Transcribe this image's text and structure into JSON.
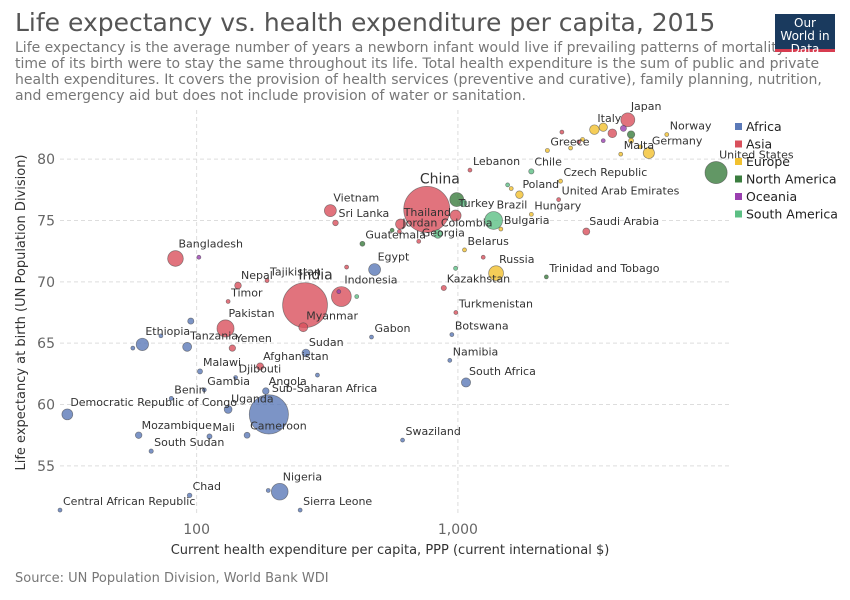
{
  "chart_data": {
    "type": "scatter",
    "title": "Life expectancy vs. health expenditure per capita, 2015",
    "subtitle": "Life expectancy is the average number of years a newborn infant would live if prevailing patterns of mortality at the time of its birth were to stay the same throughout its life. Total health expenditure is the sum of public and private health expenditures. It covers the provision of health services (preventive and curative), family planning, nutrition, and emergency aid but does not include provision of water or sanitation.",
    "logo": "Our World in Data",
    "x_label": "Current health expenditure per capita, PPP (current international $)",
    "y_label": "Life expectancy at birth (UN Population Division)",
    "source": "Source: UN Population Division, World Bank WDI",
    "log_x": true,
    "grid": true,
    "legend": "right",
    "xlim": [
      30,
      11000
    ],
    "ylim": [
      51,
      84
    ],
    "xticks": [
      100,
      {
        "value": 1000,
        "label": "1,000"
      }
    ],
    "yticks": [
      55,
      60,
      65,
      70,
      75,
      80
    ],
    "series": [
      {
        "name": "Africa",
        "color": "#5b79b8",
        "labels": [
          "Central African Republic",
          "Chad",
          "Nigeria",
          "Sierra Leone",
          "South Sudan",
          "Mozambique",
          "Mali",
          "Cameroon",
          "Swaziland",
          "Democratic Republic of Congo",
          "Uganda",
          "Sub-Saharan Africa",
          "Benin",
          "Gambia",
          "Angola",
          "Malawi",
          "Djibouti",
          "Sudan",
          "Tanzania",
          "Ethiopia",
          "Gabon",
          "Botswana",
          "Namibia",
          "South Africa",
          "Egypt",
          null,
          null,
          null,
          null,
          null
        ],
        "x": [
          30,
          94,
          208,
          249,
          67,
          60,
          112,
          156,
          614,
          32,
          132,
          189,
          80,
          107,
          184,
          103,
          141,
          262,
          92,
          62,
          467,
          948,
          931,
          1074,
          480,
          57,
          95,
          73,
          290,
          188
        ],
        "values": [
          51.4,
          52.6,
          52.9,
          51.4,
          56.2,
          57.5,
          57.4,
          57.5,
          57.1,
          59.2,
          59.6,
          59.2,
          60.5,
          61.2,
          61.1,
          62.7,
          62.2,
          64.2,
          64.7,
          64.9,
          65.5,
          65.7,
          63.6,
          61.8,
          71.0,
          64.6,
          66.8,
          65.6,
          62.4,
          53.0
        ],
        "sizes": [
          5,
          14,
          182,
          7,
          12,
          28,
          17,
          23,
          1,
          77,
          40,
          1000,
          11,
          2,
          28,
          17,
          1,
          40,
          53,
          100,
          2,
          2,
          2,
          55,
          93,
          10,
          25,
          8,
          10,
          4
        ]
      },
      {
        "name": "Asia",
        "color": "#d9505c",
        "labels": [
          "Japan",
          "Lebanon",
          "China",
          "India",
          "Vietnam",
          "Sri Lanka",
          "Bangladesh",
          "Nepal",
          "Tajikistan",
          "Timor",
          "Pakistan",
          "Yemen",
          "Afghanistan",
          "Myanmar",
          "Indonesia",
          "Kazakhstan",
          "Turkmenistan",
          "Thailand",
          "Turkey",
          "Jordan",
          "Georgia",
          "Saudi Arabia",
          "United Arab Emirates",
          null,
          null,
          null,
          null,
          null
        ],
        "x": [
          4470,
          1112,
          760,
          260,
          325,
          340,
          83,
          144,
          186,
          132,
          129,
          137,
          175,
          256,
          358,
          883,
          982,
          604,
          980,
          597,
          708,
          3100,
          2430,
          2500,
          3900,
          2900,
          1250,
          375
        ],
        "values": [
          83.2,
          79.1,
          75.9,
          68.1,
          75.8,
          74.8,
          71.9,
          69.7,
          70.1,
          68.4,
          66.2,
          64.6,
          63.1,
          66.3,
          68.8,
          69.5,
          67.5,
          74.7,
          75.4,
          74.1,
          73.3,
          74.1,
          76.7,
          82.2,
          82.1,
          81.4,
          72.0,
          71.2
        ],
        "sizes": [
          127,
          6,
          1380,
          1310,
          93,
          21,
          160,
          29,
          9,
          1,
          190,
          27,
          34,
          53,
          258,
          18,
          5,
          69,
          79,
          9,
          4,
          32,
          9,
          8,
          50,
          8,
          5,
          6
        ]
      },
      {
        "name": "Europe",
        "color": "#f2c12e",
        "labels": [
          "Italy",
          "Norway",
          "Germany",
          "Malta",
          "Greece",
          "Czech Republic",
          "Poland",
          "Hungary",
          "Bulgaria",
          "Belarus",
          "Russia",
          null,
          null,
          null,
          null,
          null,
          null
        ],
        "x": [
          3330,
          6300,
          5380,
          4200,
          2200,
          2470,
          1720,
          1910,
          1460,
          1060,
          1400,
          3600,
          4600,
          5000,
          3000,
          2700,
          1600
        ],
        "values": [
          82.4,
          82.0,
          80.5,
          80.4,
          80.7,
          78.2,
          77.1,
          75.5,
          74.3,
          72.6,
          70.7,
          82.6,
          81.5,
          81.0,
          81.6,
          80.9,
          77.6
        ],
        "sizes": [
          60,
          5,
          82,
          1,
          11,
          11,
          38,
          10,
          7,
          9,
          144,
          46,
          17,
          9,
          10,
          5,
          4
        ]
      },
      {
        "name": "North America",
        "color": "#3b7d3f",
        "labels": [
          "United States",
          "Guatemala",
          "Trinidad and Tobago",
          null,
          null,
          null
        ],
        "x": [
          9730,
          431,
          2180,
          990,
          4600,
          560
        ],
        "values": [
          78.9,
          73.1,
          70.4,
          76.7,
          82.0,
          74.2
        ],
        "sizes": [
          320,
          16,
          1,
          127,
          36,
          4
        ]
      },
      {
        "name": "Oceania",
        "color": "#9a3fb0",
        "labels": [
          null,
          null,
          null,
          null
        ],
        "x": [
          4300,
          102,
          350,
          3600
        ],
        "values": [
          82.5,
          72.0,
          69.2,
          81.5
        ],
        "sizes": [
          24,
          1,
          1,
          5
        ]
      },
      {
        "name": "South America",
        "color": "#5cbf84",
        "labels": [
          "Chile",
          "Brazil",
          "Colombia",
          null,
          null,
          null,
          null
        ],
        "x": [
          1910,
          1370,
          838,
          1550,
          1050,
          980,
          410
        ],
        "values": [
          79.0,
          75.0,
          73.9,
          77.9,
          76.4,
          71.1,
          68.8
        ],
        "sizes": [
          18,
          206,
          48,
          3,
          32,
          11,
          1
        ]
      }
    ]
  }
}
